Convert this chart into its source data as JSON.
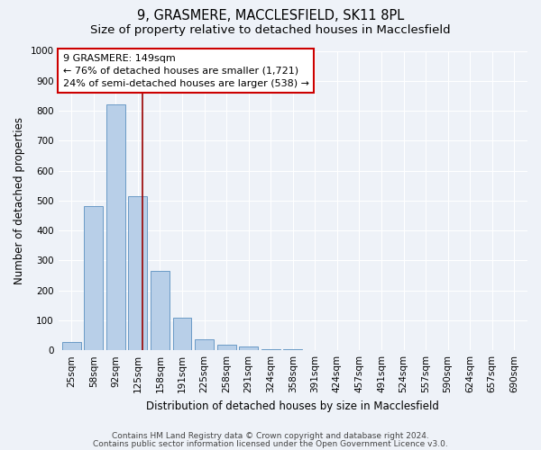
{
  "title_line1": "9, GRASMERE, MACCLESFIELD, SK11 8PL",
  "title_line2": "Size of property relative to detached houses in Macclesfield",
  "xlabel": "Distribution of detached houses by size in Macclesfield",
  "ylabel": "Number of detached properties",
  "categories": [
    "25sqm",
    "58sqm",
    "92sqm",
    "125sqm",
    "158sqm",
    "191sqm",
    "225sqm",
    "258sqm",
    "291sqm",
    "324sqm",
    "358sqm",
    "391sqm",
    "424sqm",
    "457sqm",
    "491sqm",
    "524sqm",
    "557sqm",
    "590sqm",
    "624sqm",
    "657sqm",
    "690sqm"
  ],
  "values": [
    27,
    480,
    820,
    515,
    265,
    110,
    38,
    20,
    12,
    5,
    3,
    0,
    0,
    0,
    0,
    0,
    0,
    0,
    0,
    0,
    0
  ],
  "bar_color": "#b8cfe8",
  "bar_edge_color": "#5a8fc0",
  "vline_color": "#990000",
  "annotation_text": "9 GRASMERE: 149sqm\n← 76% of detached houses are smaller (1,721)\n24% of semi-detached houses are larger (538) →",
  "annotation_box_facecolor": "white",
  "annotation_box_edgecolor": "#cc0000",
  "ylim": [
    0,
    1000
  ],
  "yticks": [
    0,
    100,
    200,
    300,
    400,
    500,
    600,
    700,
    800,
    900,
    1000
  ],
  "footer_line1": "Contains HM Land Registry data © Crown copyright and database right 2024.",
  "footer_line2": "Contains public sector information licensed under the Open Government Licence v3.0.",
  "background_color": "#eef2f8",
  "plot_background_color": "#eef2f8",
  "grid_color": "white",
  "title_fontsize": 10.5,
  "subtitle_fontsize": 9.5,
  "axis_label_fontsize": 8.5,
  "tick_fontsize": 7.5,
  "annotation_fontsize": 8,
  "footer_fontsize": 6.5
}
